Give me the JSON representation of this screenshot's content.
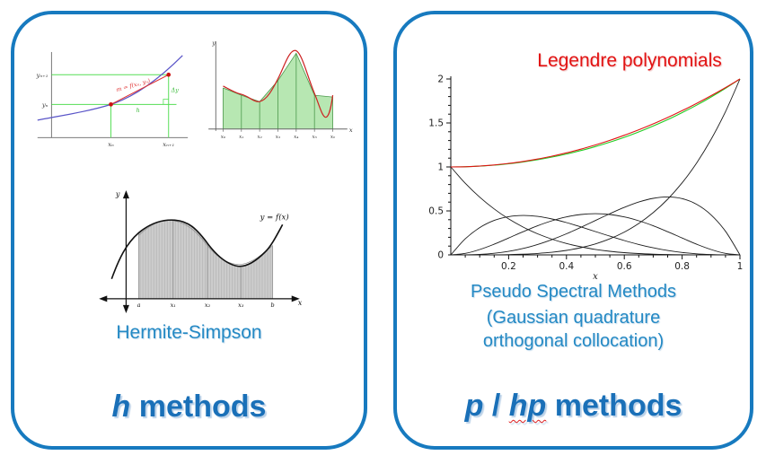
{
  "colors": {
    "panel_border": "#177abf",
    "title_blue": "#1a70b8",
    "caption_teal": "#2489c4",
    "legendre_red": "#e21313",
    "euler_curve_blue": "#5a55c8",
    "euler_guides_green": "#55dd55",
    "euler_tangent_red": "#e03434",
    "trapezoid_fill_green": "#b7e7b2",
    "trapezoid_curve_red": "#cc2222",
    "hermite_fill_gray": "#cdcdcd"
  },
  "left_panel": {
    "caption": "Hermite-Simpson",
    "title_italic": "h",
    "title_rest": " methods",
    "euler": {
      "y_axis_upper": "yₙ₊₁",
      "y_axis_lower": "yₙ",
      "x_tick_left": "xₙ",
      "x_tick_right": "xₙ₊₁",
      "slope_label": "m = f(xₙ, yₙ)",
      "dy_label": "Δy",
      "h_label": "h"
    },
    "trapezoid": {
      "y_label": "y",
      "x_label": "x",
      "x_ticks": [
        "x₀",
        "x₁",
        "x₂",
        "x₃",
        "x₄",
        "x₅",
        "x₆"
      ]
    },
    "hermite": {
      "y_label": "y",
      "x_label": "x",
      "curve_label": "y = f(x)",
      "x_ticks": [
        "a",
        "x₁",
        "x₂",
        "x₃",
        "b"
      ]
    }
  },
  "right_panel": {
    "chart_title": "Legendre polynomials",
    "caption_line1": "Pseudo Spectral Methods",
    "caption_line2": "(Gaussian quadrature",
    "caption_line3": "orthogonal collocation)",
    "title_p": "p",
    "title_sep": " / ",
    "title_hp": "hp",
    "title_rest": " methods"
  },
  "chart_data": {
    "type": "line",
    "title": "Legendre polynomials",
    "xlabel": "x",
    "ylabel": "",
    "xlim": [
      0,
      1
    ],
    "ylim": [
      0,
      2
    ],
    "xticks": [
      0.2,
      0.4,
      0.6,
      0.8,
      1
    ],
    "yticks": [
      0,
      0.5,
      1,
      1.5,
      2
    ],
    "grid": false,
    "legend": false,
    "x": [
      0,
      0.05,
      0.1,
      0.15,
      0.2,
      0.25,
      0.3,
      0.35,
      0.4,
      0.45,
      0.5,
      0.55,
      0.6,
      0.65,
      0.7,
      0.75,
      0.8,
      0.85,
      0.9,
      0.95,
      1
    ],
    "series": [
      {
        "name": "black-basis-0",
        "color": "#1c1c1c",
        "values": [
          1,
          0.8145,
          0.6561,
          0.522,
          0.4096,
          0.3164,
          0.2401,
          0.1785,
          0.1296,
          0.0915,
          0.0625,
          0.041,
          0.0256,
          0.015,
          0.0081,
          0.004,
          0.0016,
          0.0005,
          0.0001,
          0,
          0
        ]
      },
      {
        "name": "black-basis-1",
        "color": "#1c1c1c",
        "values": [
          0,
          0.1822,
          0.3098,
          0.3915,
          0.4352,
          0.4482,
          0.4373,
          0.4085,
          0.3672,
          0.3182,
          0.2656,
          0.213,
          0.1632,
          0.1184,
          0.0803,
          0.0498,
          0.0272,
          0.0122,
          0.0038,
          0.0005,
          0
        ]
      },
      {
        "name": "black-basis-2",
        "color": "#1c1c1c",
        "values": [
          0,
          0.0169,
          0.0608,
          0.1219,
          0.192,
          0.2637,
          0.3308,
          0.3882,
          0.432,
          0.4594,
          0.4688,
          0.4594,
          0.432,
          0.3882,
          0.3308,
          0.2637,
          0.192,
          0.1219,
          0.0608,
          0.0169,
          0
        ]
      },
      {
        "name": "black-basis-3",
        "color": "#1c1c1c",
        "values": [
          0,
          0.0007,
          0.0056,
          0.0179,
          0.04,
          0.0732,
          0.1181,
          0.1742,
          0.24,
          0.3132,
          0.3906,
          0.4679,
          0.54,
          0.6007,
          0.6431,
          0.6592,
          0.64,
          0.5757,
          0.4556,
          0.2679,
          0
        ]
      },
      {
        "name": "black-basis-4",
        "color": "#1c1c1c",
        "values": [
          0,
          0,
          0.0002,
          0.001,
          0.0032,
          0.0078,
          0.0162,
          0.03,
          0.0512,
          0.082,
          0.125,
          0.183,
          0.2592,
          0.357,
          0.4802,
          0.6328,
          0.8192,
          1.044,
          1.3122,
          1.629,
          2
        ]
      },
      {
        "name": "green-approximation",
        "color": "#22cc22",
        "values": [
          1,
          1.0023,
          1.009,
          1.0203,
          1.0362,
          1.0566,
          1.0818,
          1.1118,
          1.1466,
          1.1863,
          1.2313,
          1.2814,
          1.337,
          1.3981,
          1.465,
          1.5379,
          1.617,
          1.7025,
          1.7946,
          1.8937,
          2
        ]
      },
      {
        "name": "red-function",
        "color": "#e01414",
        "values": [
          1,
          1.0025,
          1.01,
          1.0225,
          1.04,
          1.0625,
          1.09,
          1.1225,
          1.16,
          1.2025,
          1.25,
          1.3025,
          1.36,
          1.4225,
          1.49,
          1.5625,
          1.64,
          1.7225,
          1.81,
          1.9025,
          2
        ]
      }
    ]
  }
}
